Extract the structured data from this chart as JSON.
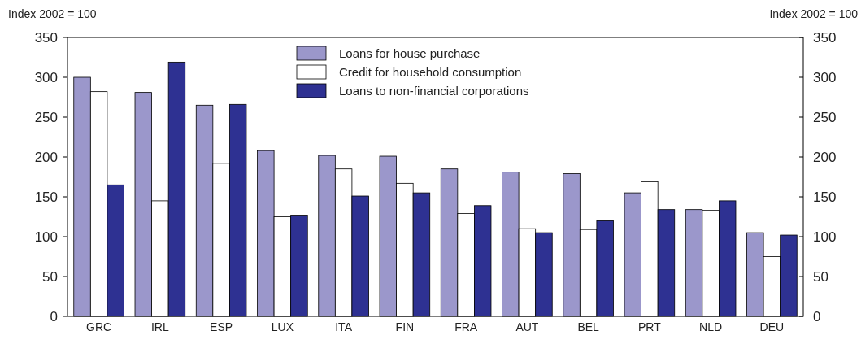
{
  "chart_data": {
    "type": "bar",
    "ylabel": "Index 2002 = 100",
    "y2label": "Index 2002 = 100",
    "categories": [
      "GRC",
      "IRL",
      "ESP",
      "LUX",
      "ITA",
      "FIN",
      "FRA",
      "AUT",
      "BEL",
      "PRT",
      "NLD",
      "DEU"
    ],
    "series": [
      {
        "name": "Loans for house purchase",
        "color": "#9b97cb",
        "values": [
          300,
          281,
          265,
          208,
          202,
          201,
          185,
          181,
          179,
          155,
          134,
          105
        ]
      },
      {
        "name": "Credit for household consumption",
        "color": "#ffffff",
        "values": [
          282,
          145,
          192,
          125,
          185,
          167,
          129,
          110,
          109,
          169,
          133,
          75
        ]
      },
      {
        "name": "Loans to non-financial corporations",
        "color": "#2e3192",
        "values": [
          165,
          319,
          266,
          127,
          151,
          155,
          139,
          105,
          120,
          134,
          145,
          102
        ]
      }
    ],
    "ylim": [
      0,
      350
    ],
    "yticks": [
      0,
      50,
      100,
      150,
      200,
      250,
      300,
      350
    ],
    "y2lim": [
      0,
      350
    ],
    "y2ticks": [
      0,
      50,
      100,
      150,
      200,
      250,
      300,
      350
    ],
    "grid": false,
    "legend": "top"
  }
}
